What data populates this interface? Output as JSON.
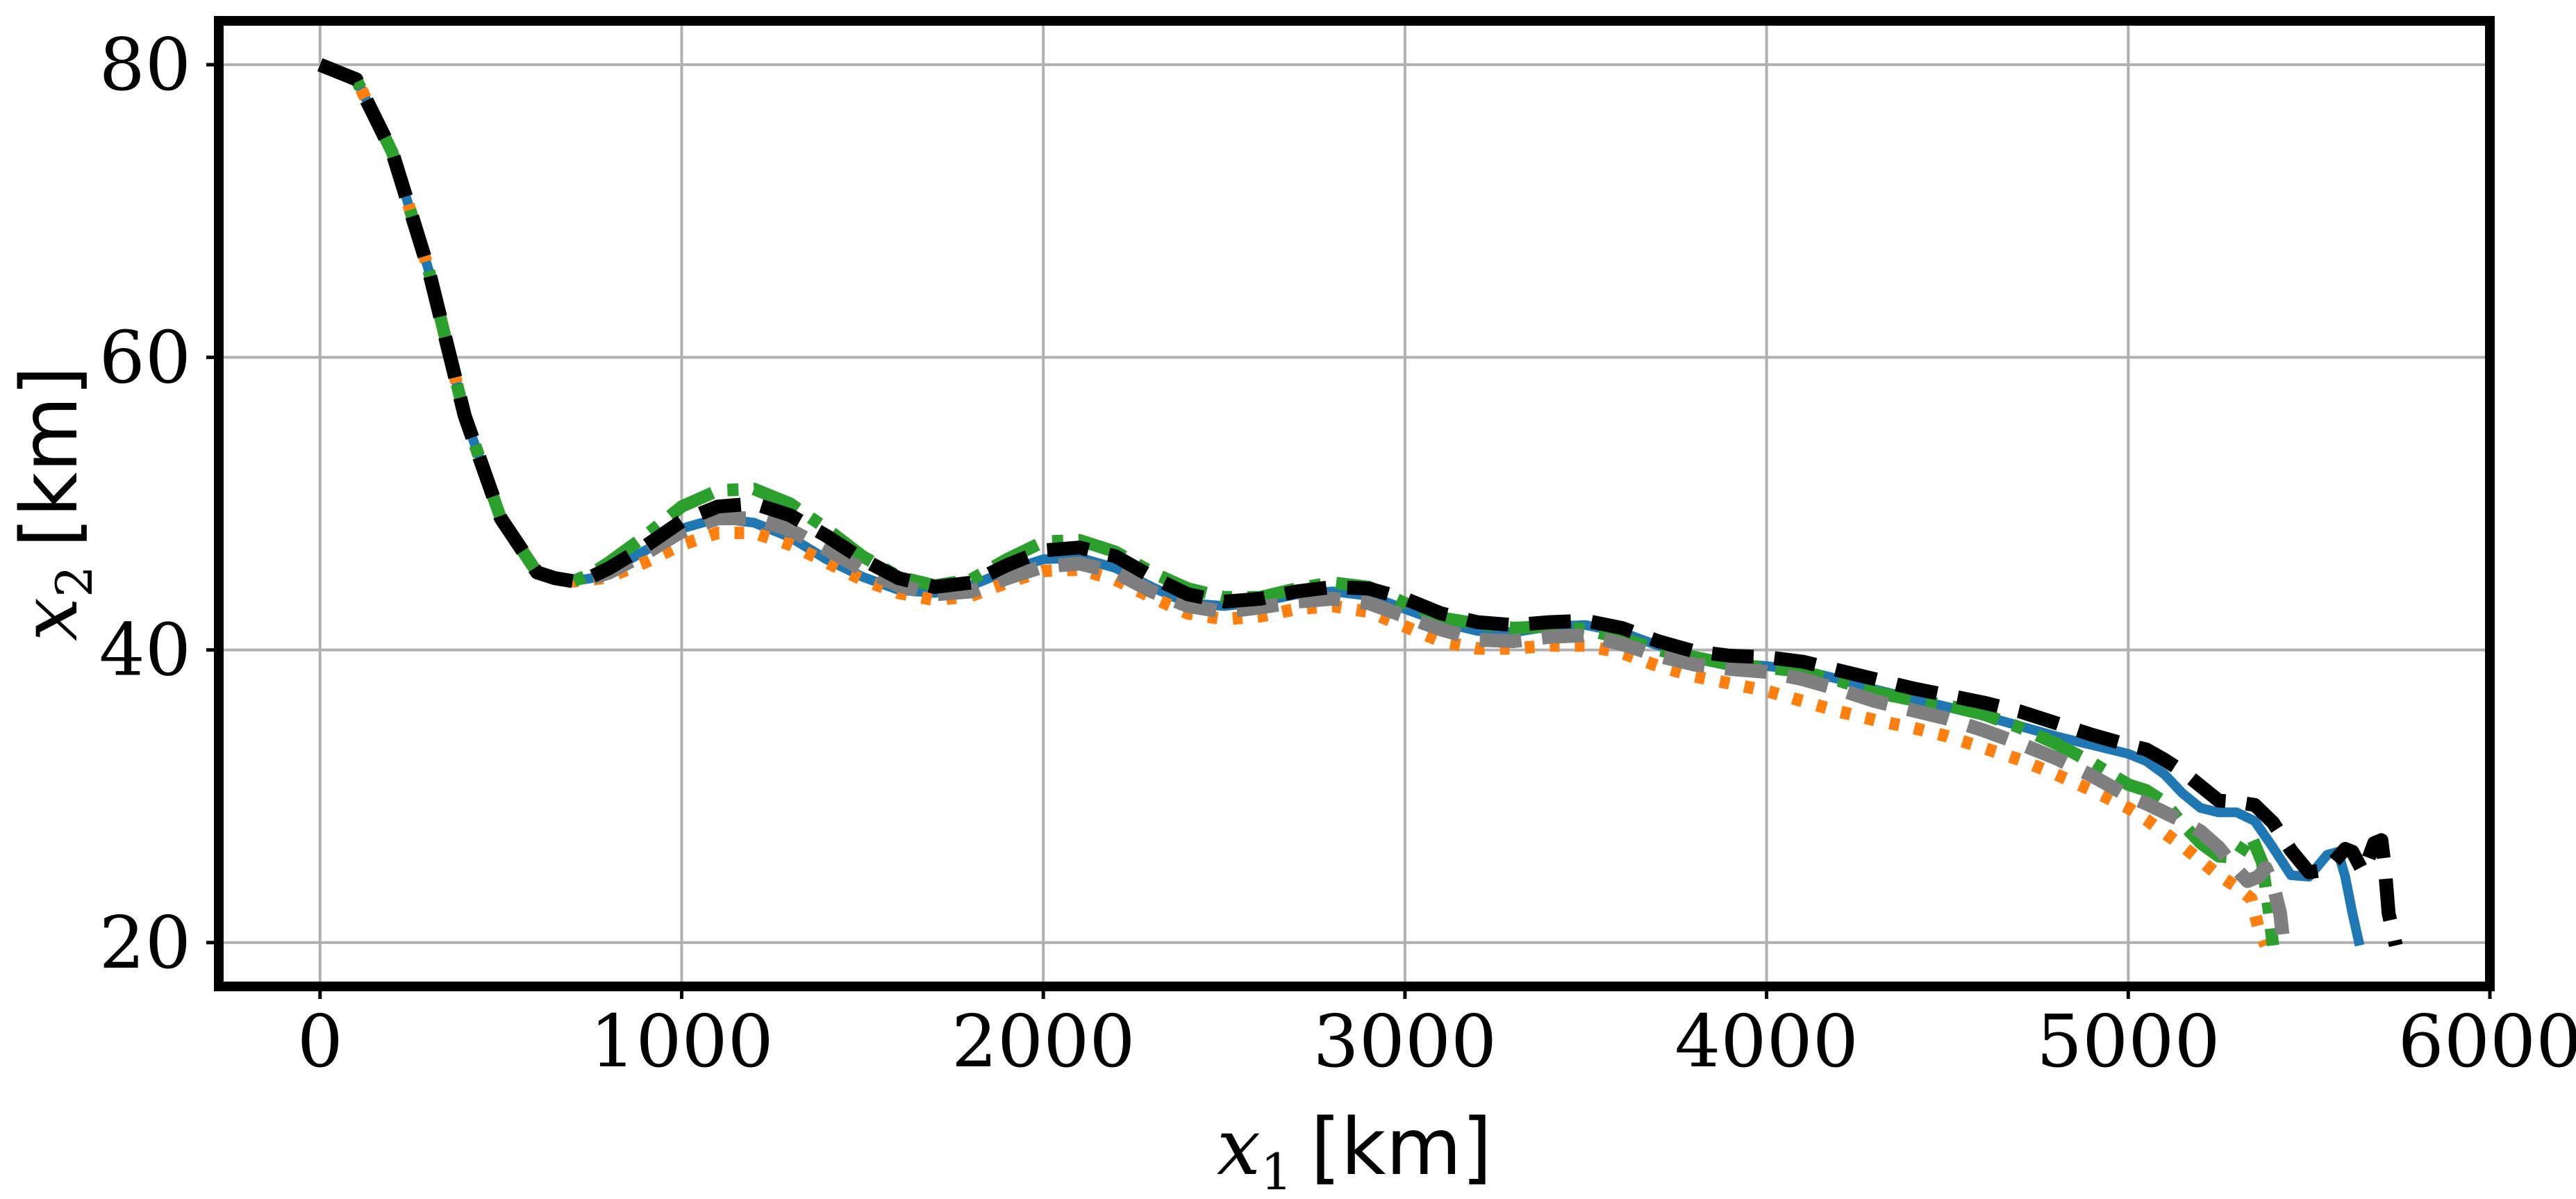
{
  "chart_data": {
    "type": "line",
    "title": "",
    "xlabel": {
      "var": "x",
      "sub": "1",
      "unit": "[km]"
    },
    "ylabel": {
      "var": "x",
      "sub": "2",
      "unit": "[km]"
    },
    "xlim": [
      -280,
      6000
    ],
    "ylim": [
      17,
      83
    ],
    "xticks": [
      0,
      1000,
      2000,
      3000,
      4000,
      5000,
      6000
    ],
    "yticks": [
      20,
      40,
      60,
      80
    ],
    "xtick_labels": [
      "0",
      "1000",
      "2000",
      "3000",
      "4000",
      "5000",
      "6000"
    ],
    "ytick_labels": [
      "20",
      "40",
      "60",
      "80"
    ],
    "grid": true,
    "legend": "none",
    "series": [
      {
        "color": "#1f77b4",
        "style": "solid",
        "x": [
          0,
          100,
          200,
          300,
          400,
          500,
          600,
          650,
          700,
          750,
          800,
          900,
          1000,
          1100,
          1200,
          1300,
          1400,
          1500,
          1600,
          1700,
          1800,
          1900,
          2000,
          2100,
          2200,
          2300,
          2400,
          2500,
          2600,
          2700,
          2800,
          2900,
          3000,
          3100,
          3200,
          3300,
          3400,
          3500,
          3600,
          3700,
          3800,
          3900,
          4000,
          4100,
          4200,
          4300,
          4400,
          4500,
          4600,
          4700,
          4800,
          4900,
          5000,
          5050,
          5100,
          5150,
          5200,
          5250,
          5300,
          5350,
          5400,
          5450,
          5500,
          5550,
          5580,
          5600,
          5620,
          5640
        ],
        "y": [
          80,
          79,
          74,
          66,
          56,
          49,
          45.3,
          44.9,
          44.7,
          44.9,
          45.4,
          46.8,
          48.3,
          49.0,
          48.7,
          47.7,
          46.2,
          45.0,
          44.1,
          43.9,
          44.4,
          45.4,
          46.2,
          46.3,
          45.6,
          44.3,
          43.2,
          43.0,
          43.3,
          43.8,
          44.0,
          43.7,
          42.8,
          41.9,
          41.3,
          41.2,
          41.6,
          41.7,
          41.2,
          40.3,
          39.6,
          39.1,
          38.9,
          38.6,
          38.0,
          37.3,
          36.7,
          36.1,
          35.5,
          34.8,
          34.1,
          33.5,
          32.9,
          32.4,
          31.5,
          30.2,
          29.2,
          28.9,
          28.9,
          28.3,
          26.5,
          24.6,
          24.5,
          26.0,
          26.2,
          24.5,
          22.0,
          19.8
        ]
      },
      {
        "color": "#ff7f0e",
        "style": "dotted",
        "x": [
          0,
          100,
          200,
          300,
          400,
          500,
          600,
          650,
          700,
          750,
          800,
          900,
          1000,
          1100,
          1200,
          1300,
          1400,
          1500,
          1600,
          1700,
          1800,
          1900,
          2000,
          2100,
          2200,
          2300,
          2400,
          2500,
          2600,
          2700,
          2800,
          2900,
          3000,
          3100,
          3200,
          3300,
          3400,
          3500,
          3600,
          3700,
          3800,
          3900,
          4000,
          4100,
          4200,
          4300,
          4400,
          4500,
          4600,
          4700,
          4800,
          4900,
          5000,
          5050,
          5100,
          5150,
          5200,
          5250,
          5300,
          5340,
          5360,
          5380
        ],
        "y": [
          80,
          79,
          74,
          66,
          56,
          49,
          45.3,
          44.9,
          44.7,
          44.8,
          45.0,
          46.0,
          47.2,
          48.0,
          48.0,
          47.2,
          46.0,
          44.8,
          43.9,
          43.4,
          43.7,
          44.6,
          45.4,
          45.5,
          44.8,
          43.6,
          42.5,
          42.1,
          42.3,
          42.8,
          43.0,
          42.6,
          41.6,
          40.6,
          40.1,
          40.1,
          40.3,
          40.3,
          39.8,
          38.9,
          38.2,
          37.7,
          37.2,
          36.5,
          35.8,
          35.2,
          34.7,
          34.1,
          33.3,
          32.5,
          31.5,
          30.4,
          29.2,
          28.4,
          27.5,
          26.6,
          25.6,
          24.6,
          23.8,
          23.0,
          21.0,
          19.8
        ]
      },
      {
        "color": "#2ca02c",
        "style": "dashdot",
        "x": [
          0,
          100,
          200,
          300,
          400,
          500,
          600,
          650,
          700,
          750,
          800,
          900,
          1000,
          1100,
          1200,
          1300,
          1400,
          1500,
          1600,
          1700,
          1800,
          1900,
          2000,
          2100,
          2200,
          2300,
          2400,
          2500,
          2600,
          2700,
          2800,
          2900,
          3000,
          3100,
          3200,
          3300,
          3400,
          3500,
          3600,
          3700,
          3800,
          3900,
          4000,
          4100,
          4200,
          4300,
          4400,
          4500,
          4600,
          4700,
          4800,
          4900,
          5000,
          5050,
          5100,
          5150,
          5200,
          5250,
          5300,
          5340,
          5370,
          5390,
          5400
        ],
        "y": [
          80,
          79,
          74,
          66,
          56,
          49,
          45.3,
          44.9,
          44.7,
          45.2,
          46.0,
          47.8,
          49.8,
          50.9,
          51.0,
          50.0,
          48.3,
          46.4,
          45.0,
          44.4,
          44.8,
          46.2,
          47.4,
          47.5,
          46.7,
          45.3,
          44.2,
          43.6,
          43.6,
          44.2,
          44.6,
          44.3,
          43.2,
          42.2,
          41.8,
          41.5,
          41.6,
          41.4,
          40.8,
          40.0,
          39.5,
          39.0,
          38.8,
          38.5,
          37.9,
          37.1,
          36.6,
          36.2,
          35.6,
          34.7,
          33.6,
          32.3,
          30.8,
          30.4,
          29.6,
          28.1,
          26.8,
          25.9,
          25.8,
          27.3,
          25.5,
          22.0,
          19.8
        ]
      },
      {
        "color": "#7f7f7f",
        "style": "dashed",
        "x": [
          0,
          100,
          200,
          300,
          400,
          500,
          600,
          650,
          700,
          750,
          800,
          900,
          1000,
          1100,
          1200,
          1300,
          1400,
          1500,
          1600,
          1700,
          1800,
          1900,
          2000,
          2100,
          2200,
          2300,
          2400,
          2500,
          2600,
          2700,
          2800,
          2900,
          3000,
          3100,
          3200,
          3300,
          3400,
          3500,
          3600,
          3700,
          3800,
          3900,
          4000,
          4100,
          4200,
          4300,
          4400,
          4500,
          4600,
          4700,
          4800,
          4900,
          5000,
          5050,
          5100,
          5150,
          5200,
          5250,
          5300,
          5330,
          5360,
          5380,
          5400,
          5420,
          5430
        ],
        "y": [
          80,
          79,
          74,
          66,
          56,
          49,
          45.3,
          44.9,
          44.7,
          44.9,
          45.3,
          46.6,
          48.1,
          49.0,
          49.0,
          48.2,
          46.9,
          45.5,
          44.4,
          43.8,
          44.0,
          44.9,
          45.7,
          45.9,
          45.3,
          44.0,
          43.0,
          42.6,
          42.9,
          43.3,
          43.5,
          43.2,
          42.3,
          41.4,
          40.7,
          40.6,
          40.9,
          41.0,
          40.4,
          39.6,
          39.0,
          38.7,
          38.5,
          38.0,
          37.3,
          36.5,
          35.9,
          35.3,
          34.5,
          33.6,
          32.6,
          31.4,
          30.0,
          29.5,
          28.9,
          28.3,
          27.6,
          26.5,
          25.0,
          24.2,
          24.5,
          25.1,
          24.0,
          22.0,
          19.8
        ]
      },
      {
        "color": "#000000",
        "style": "dashed",
        "x": [
          0,
          100,
          200,
          300,
          400,
          500,
          600,
          650,
          700,
          750,
          800,
          900,
          1000,
          1100,
          1200,
          1300,
          1400,
          1500,
          1600,
          1700,
          1800,
          1900,
          2000,
          2100,
          2200,
          2300,
          2400,
          2500,
          2600,
          2700,
          2800,
          2900,
          3000,
          3100,
          3200,
          3300,
          3400,
          3500,
          3600,
          3700,
          3800,
          3900,
          4000,
          4100,
          4200,
          4300,
          4400,
          4500,
          4600,
          4700,
          4800,
          4900,
          5000,
          5050,
          5100,
          5150,
          5200,
          5250,
          5300,
          5350,
          5400,
          5450,
          5500,
          5550,
          5600,
          5620,
          5650,
          5680,
          5700,
          5710,
          5720,
          5740
        ],
        "y": [
          80,
          79,
          74,
          66,
          56,
          49,
          45.3,
          44.9,
          44.7,
          45.0,
          45.6,
          47.1,
          48.8,
          49.8,
          50.0,
          49.2,
          47.8,
          46.2,
          44.9,
          44.3,
          44.6,
          45.8,
          46.8,
          47.0,
          46.4,
          45.0,
          43.8,
          43.3,
          43.5,
          44.0,
          44.3,
          44.2,
          43.5,
          42.5,
          41.9,
          41.7,
          41.9,
          42.0,
          41.5,
          40.6,
          39.9,
          39.6,
          39.5,
          39.2,
          38.6,
          38.0,
          37.4,
          36.9,
          36.4,
          35.8,
          35.0,
          34.2,
          33.5,
          33.2,
          32.5,
          31.7,
          30.7,
          29.7,
          29.6,
          29.4,
          28.2,
          26.3,
          24.8,
          25.0,
          26.4,
          26.2,
          24.8,
          26.8,
          27.0,
          25.0,
          22.0,
          19.8
        ]
      }
    ]
  }
}
